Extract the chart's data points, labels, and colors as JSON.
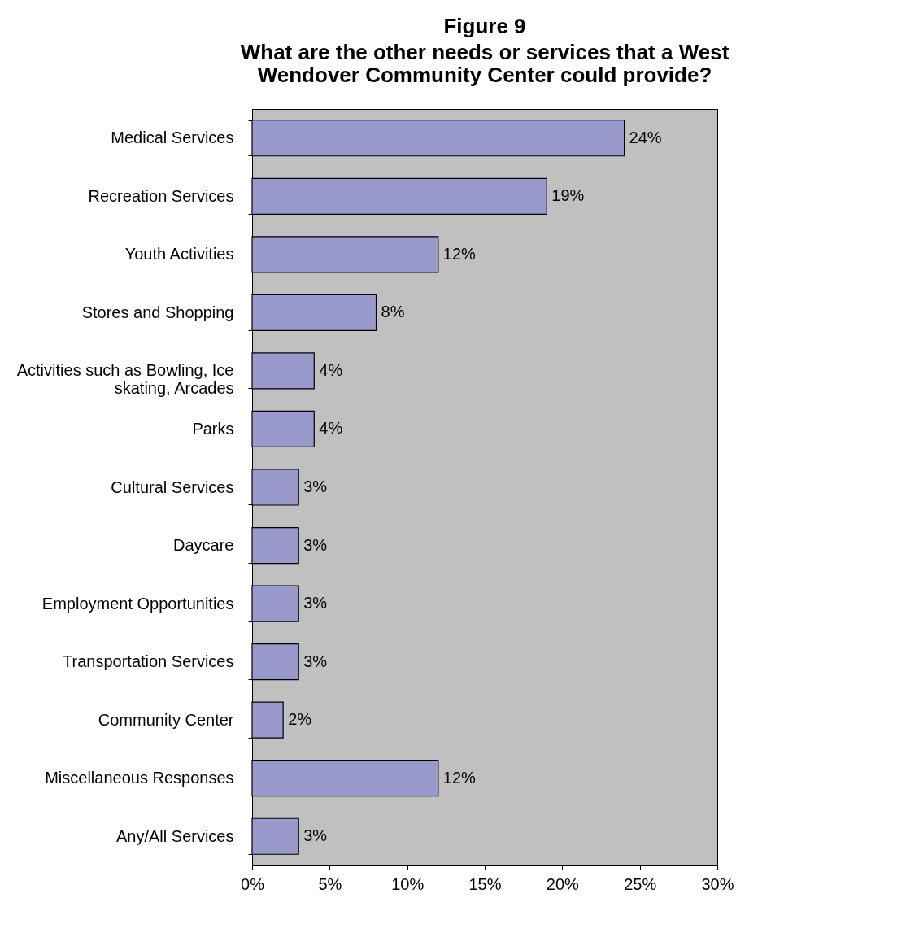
{
  "chart_data": {
    "type": "bar",
    "orientation": "horizontal",
    "title": "Figure 9",
    "subtitle": "What are the other needs or services that a West Wendover Community Center could provide?",
    "categories": [
      "Medical Services",
      "Recreation Services",
      "Youth Activities",
      "Stores and Shopping",
      "Activities such as Bowling, Ice skating, Arcades",
      "Parks",
      "Cultural Services",
      "Daycare",
      "Employment Opportunities",
      "Transportation Services",
      "Community Center",
      "Miscellaneous Responses",
      "Any/All Services"
    ],
    "values": [
      24,
      19,
      12,
      8,
      4,
      4,
      3,
      3,
      3,
      3,
      2,
      12,
      3
    ],
    "value_labels": [
      "24%",
      "19%",
      "12%",
      "8%",
      "4%",
      "4%",
      "3%",
      "3%",
      "3%",
      "3%",
      "2%",
      "12%",
      "3%"
    ],
    "color": "#9999cc",
    "xlim": [
      0,
      30
    ],
    "xticks": [
      {
        "value": 0,
        "label": "0%"
      },
      {
        "value": 5,
        "label": "5%"
      },
      {
        "value": 10,
        "label": "10%"
      },
      {
        "value": 15,
        "label": "15%"
      },
      {
        "value": 20,
        "label": "20%"
      },
      {
        "value": 25,
        "label": "25%"
      },
      {
        "value": 30,
        "label": "30%"
      }
    ],
    "grid": false
  }
}
